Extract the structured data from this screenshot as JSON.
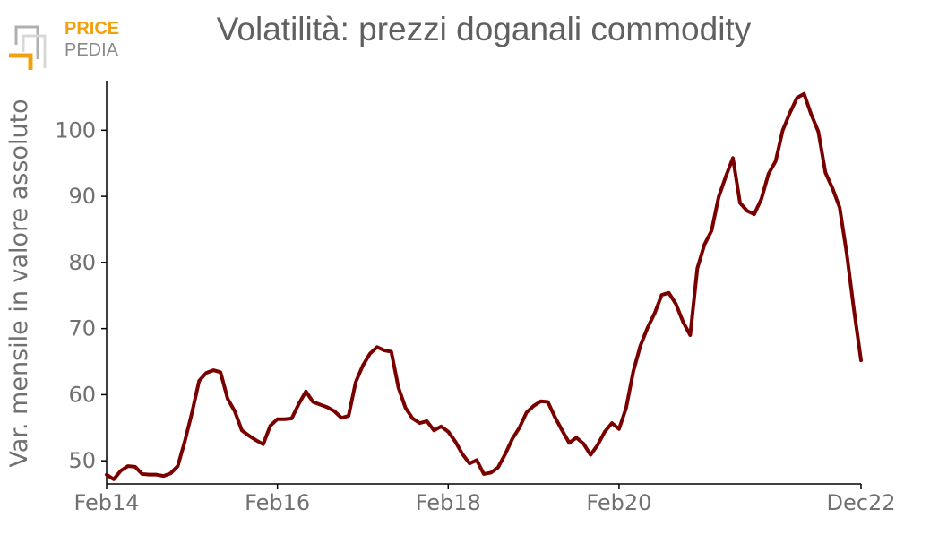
{
  "logo": {
    "line1": "PRICE",
    "line2": "PEDIA"
  },
  "colors": {
    "series": "#7a0000",
    "axis": "#000000",
    "text": "#707070",
    "logo_orange": "#f0a010",
    "logo_gray": "#8a8a8a"
  },
  "chart_data": {
    "type": "line",
    "title": "Volatilità: prezzi doganali commodity",
    "xlabel": "",
    "ylabel": "Var. mensile in valore assoluto",
    "x_ticks": [
      "Feb14",
      "Feb16",
      "Feb18",
      "Feb20",
      "Dec22"
    ],
    "x_tick_index": [
      0,
      24,
      48,
      72,
      106
    ],
    "y_ticks": [
      50,
      60,
      70,
      80,
      90,
      100
    ],
    "ylim": [
      46.5,
      107.5
    ],
    "grid": false,
    "legend": "none",
    "series": [
      {
        "values": [
          47.9,
          47.2,
          48.5,
          49.2,
          49.1,
          48.0,
          47.9,
          47.9,
          47.7,
          48.1,
          49.2,
          53.0,
          57.3,
          62.1,
          63.3,
          63.7,
          63.4,
          59.4,
          57.5,
          54.6,
          53.8,
          53.1,
          52.5,
          55.3,
          56.3,
          56.3,
          56.4,
          58.6,
          60.5,
          58.9,
          58.5,
          58.1,
          57.5,
          56.5,
          56.8,
          61.9,
          64.4,
          66.2,
          67.2,
          66.7,
          66.5,
          61.1,
          58.0,
          56.4,
          55.7,
          56.0,
          54.6,
          55.2,
          54.4,
          52.9,
          51.0,
          49.6,
          50.1,
          48.0,
          48.2,
          49.0,
          51.0,
          53.3,
          55.0,
          57.3,
          58.3,
          59.0,
          58.9,
          56.6,
          54.6,
          52.7,
          53.5,
          52.6,
          50.9,
          52.4,
          54.4,
          55.7,
          54.8,
          58.0,
          63.5,
          67.4,
          70.1,
          72.3,
          75.1,
          75.4,
          73.7,
          71.0,
          69.0,
          79.1,
          82.7,
          84.8,
          89.9,
          93.0,
          95.8,
          89.0,
          87.8,
          87.3,
          89.6,
          93.4,
          95.3,
          100.0,
          102.6,
          104.9,
          105.5,
          102.4,
          99.8,
          93.6,
          91.2,
          88.3,
          81.3,
          72.9,
          65.2
        ]
      }
    ]
  }
}
